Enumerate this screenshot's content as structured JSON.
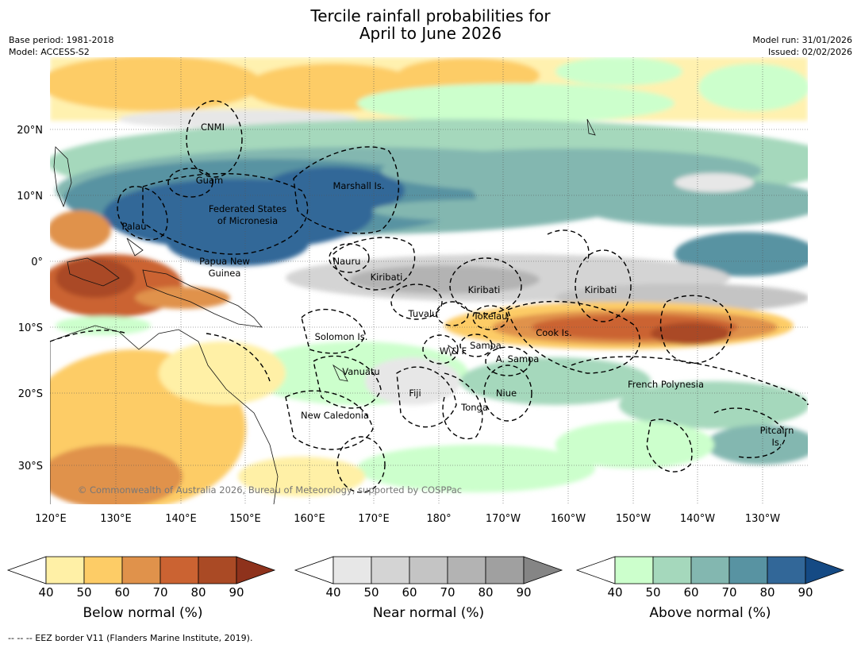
{
  "title": {
    "line1": "Tercile rainfall probabilities for",
    "line2": "April to June 2026"
  },
  "meta_left": {
    "base_period": "Base period: 1981-2018",
    "model": "Model: ACCESS-S2"
  },
  "meta_right": {
    "model_run": "Model run: 31/01/2026",
    "issued": "Issued: 02/02/2026"
  },
  "map": {
    "lat_labels": [
      "20°N",
      "10°N",
      "0°",
      "10°S",
      "20°S",
      "30°S"
    ],
    "lon_labels": [
      "120°E",
      "130°E",
      "140°E",
      "150°E",
      "160°E",
      "170°E",
      "180°",
      "170°W",
      "160°W",
      "150°W",
      "140°W",
      "130°W"
    ],
    "regions": [
      "CNMI",
      "Guam",
      "Marshall Is.",
      "Federated States",
      "of Micronesia",
      "Palau",
      "Papua New",
      "Guinea",
      "Nauru",
      "Kiribati",
      "Kiribati",
      "Kiribati",
      "Tuvalu",
      "Tokelau",
      "Cook Is.",
      "Solomon Is.",
      "W & F",
      "Samoa",
      "A. Samoa",
      "Vanuatu",
      "Fiji",
      "Niue",
      "French Polynesia",
      "Tonga",
      "New Caledonia",
      "Pitcairn",
      "Is."
    ],
    "copyright": "© Commonwealth of Australia 2026, Bureau of Meteorology, supported by COSPPac"
  },
  "colorbars": [
    {
      "label": "Below normal (%)",
      "ticks": [
        "40",
        "50",
        "60",
        "70",
        "80",
        "90"
      ],
      "colors": [
        "#ffffff",
        "#fff0a6",
        "#fdcc66",
        "#e0924b",
        "#cb6332",
        "#aa4a25",
        "#8e321c"
      ]
    },
    {
      "label": "Near normal (%)",
      "ticks": [
        "40",
        "50",
        "60",
        "70",
        "80",
        "90"
      ],
      "colors": [
        "#ffffff",
        "#e7e7e7",
        "#d4d4d4",
        "#c4c4c4",
        "#b3b3b3",
        "#a0a0a0",
        "#858585"
      ]
    },
    {
      "label": "Above normal (%)",
      "ticks": [
        "40",
        "50",
        "60",
        "70",
        "80",
        "90"
      ],
      "colors": [
        "#ffffff",
        "#ccffcc",
        "#a5d8bc",
        "#83b7b0",
        "#5893a2",
        "#326798",
        "#154a84"
      ]
    }
  ],
  "footer": "--  --  -- EEZ border V11 (Flanders Marine Institute, 2019)."
}
